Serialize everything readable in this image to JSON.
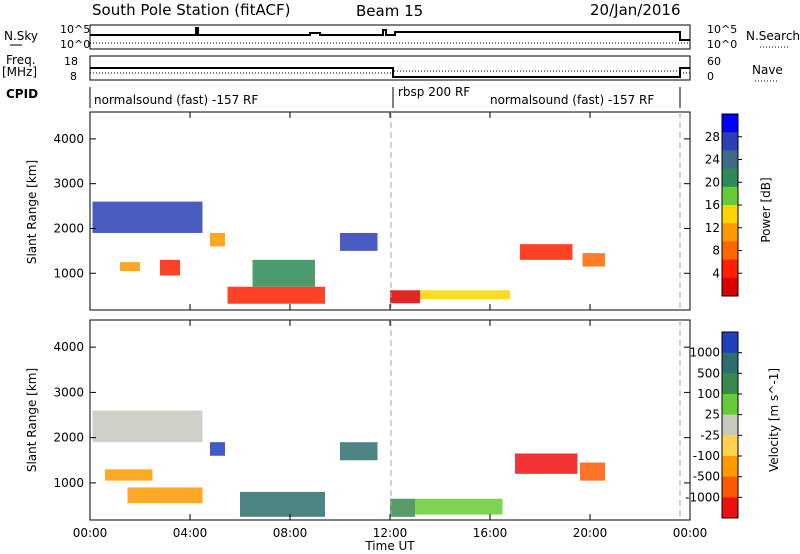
{
  "header": {
    "title": "South Pole Station (fitACF)",
    "beam": "Beam 15",
    "date": "20/Jan/2016"
  },
  "side_labels": {
    "nsky": "N.Sky",
    "nsky_tick_hi": "10^5",
    "nsky_tick_lo": "10^0",
    "nsearch": "N.Search",
    "nsearch_tick_hi": "10^5",
    "nsearch_tick_lo": "10^0",
    "freq": "Freq.",
    "freq_unit": "[MHz]",
    "freq_tick_hi": "18",
    "freq_tick_lo": "8",
    "nave": "Nave",
    "nave_tick_hi": "60",
    "nave_tick_lo": "0",
    "cpid": "CPID"
  },
  "cpid_segments": [
    {
      "label": "normalsound (fast) -157 RF"
    },
    {
      "label": "rbsp 200 RF"
    },
    {
      "label": "normalsound (fast) -157 RF"
    }
  ],
  "chart_data": [
    {
      "type": "heatmap",
      "panel": "power",
      "ylabel": "Slant Range [km]",
      "ylim": [
        180,
        4600
      ],
      "yticks": [
        "1000",
        "2000",
        "3000",
        "4000"
      ],
      "xlim_hours": [
        0,
        24
      ],
      "colorbar_label": "Power [dB]",
      "colorbar_ticks": [
        "4",
        "8",
        "12",
        "16",
        "20",
        "24",
        "28"
      ],
      "colorbar_colors": [
        "#0000ff",
        "#2a40b4",
        "#3f6a8a",
        "#2e8b57",
        "#66cc33",
        "#ffd400",
        "#ff9900",
        "#ff6600",
        "#ff2000",
        "#dd0000"
      ]
    },
    {
      "type": "heatmap",
      "panel": "velocity",
      "ylabel": "Slant Range [km]",
      "ylim": [
        180,
        4600
      ],
      "yticks": [
        "1000",
        "2000",
        "3000",
        "4000"
      ],
      "xlim_hours": [
        0,
        24
      ],
      "colorbar_label": "Velocity [m s^-1]",
      "colorbar_ticks": [
        "1000",
        "500",
        "100",
        "25",
        "-25",
        "-100",
        "-500",
        "-1000"
      ],
      "colorbar_colors": [
        "#2040c0",
        "#2e6e6e",
        "#3a8a50",
        "#66cc33",
        "#c8c8c0",
        "#ffd24d",
        "#ff9900",
        "#ff5a00",
        "#ee1010"
      ]
    }
  ],
  "time_axis": {
    "ticks": [
      "00:00",
      "04:00",
      "08:00",
      "12:00",
      "16:00",
      "20:00",
      "00:00"
    ],
    "label": "Time UT"
  }
}
